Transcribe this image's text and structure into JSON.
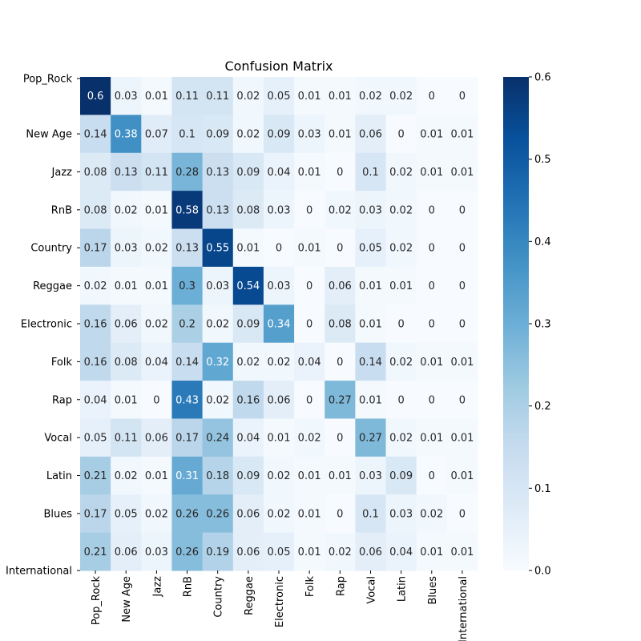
{
  "chart_data": {
    "type": "heatmap",
    "title": "Confusion Matrix",
    "rows": [
      "Pop_Rock",
      "New Age",
      "Jazz",
      "RnB",
      "Country",
      "Reggae",
      "Electronic",
      "Folk",
      "Rap",
      "Vocal",
      "Latin",
      "Blues",
      "International"
    ],
    "cols": [
      "Pop_Rock",
      "New Age",
      "Jazz",
      "RnB",
      "Country",
      "Reggae",
      "Electronic",
      "Folk",
      "Rap",
      "Vocal",
      "Latin",
      "Blues",
      "International"
    ],
    "values": [
      [
        0.6,
        0.03,
        0.01,
        0.11,
        0.11,
        0.02,
        0.05,
        0.01,
        0.01,
        0.02,
        0.02,
        0,
        0
      ],
      [
        0.14,
        0.38,
        0.07,
        0.1,
        0.09,
        0.02,
        0.09,
        0.03,
        0.01,
        0.06,
        0,
        0.01,
        0.01
      ],
      [
        0.08,
        0.13,
        0.11,
        0.28,
        0.13,
        0.09,
        0.04,
        0.01,
        0,
        0.1,
        0.02,
        0.01,
        0.01
      ],
      [
        0.08,
        0.02,
        0.01,
        0.58,
        0.13,
        0.08,
        0.03,
        0,
        0.02,
        0.03,
        0.02,
        0,
        0
      ],
      [
        0.17,
        0.03,
        0.02,
        0.13,
        0.55,
        0.01,
        0,
        0.01,
        0,
        0.05,
        0.02,
        0,
        0
      ],
      [
        0.02,
        0.01,
        0.01,
        0.3,
        0.03,
        0.54,
        0.03,
        0,
        0.06,
        0.01,
        0.01,
        0,
        0
      ],
      [
        0.16,
        0.06,
        0.02,
        0.2,
        0.02,
        0.09,
        0.34,
        0,
        0.08,
        0.01,
        0,
        0,
        0
      ],
      [
        0.16,
        0.08,
        0.04,
        0.14,
        0.32,
        0.02,
        0.02,
        0.04,
        0,
        0.14,
        0.02,
        0.01,
        0.01
      ],
      [
        0.04,
        0.01,
        0,
        0.43,
        0.02,
        0.16,
        0.06,
        0,
        0.27,
        0.01,
        0,
        0,
        0
      ],
      [
        0.05,
        0.11,
        0.06,
        0.17,
        0.24,
        0.04,
        0.01,
        0.02,
        0,
        0.27,
        0.02,
        0.01,
        0.01
      ],
      [
        0.21,
        0.02,
        0.01,
        0.31,
        0.18,
        0.09,
        0.02,
        0.01,
        0.01,
        0.03,
        0.09,
        0,
        0.01
      ],
      [
        0.17,
        0.05,
        0.02,
        0.26,
        0.26,
        0.06,
        0.02,
        0.01,
        0,
        0.1,
        0.03,
        0.02,
        0
      ],
      [
        0.21,
        0.06,
        0.03,
        0.26,
        0.19,
        0.06,
        0.05,
        0.01,
        0.02,
        0.06,
        0.04,
        0.01,
        0.01
      ]
    ],
    "colorbar": {
      "range": [
        0.0,
        0.6
      ],
      "ticks": [
        "0.0",
        "0.1",
        "0.2",
        "0.3",
        "0.4",
        "0.5",
        "0.6"
      ],
      "colormap": "Blues"
    }
  }
}
